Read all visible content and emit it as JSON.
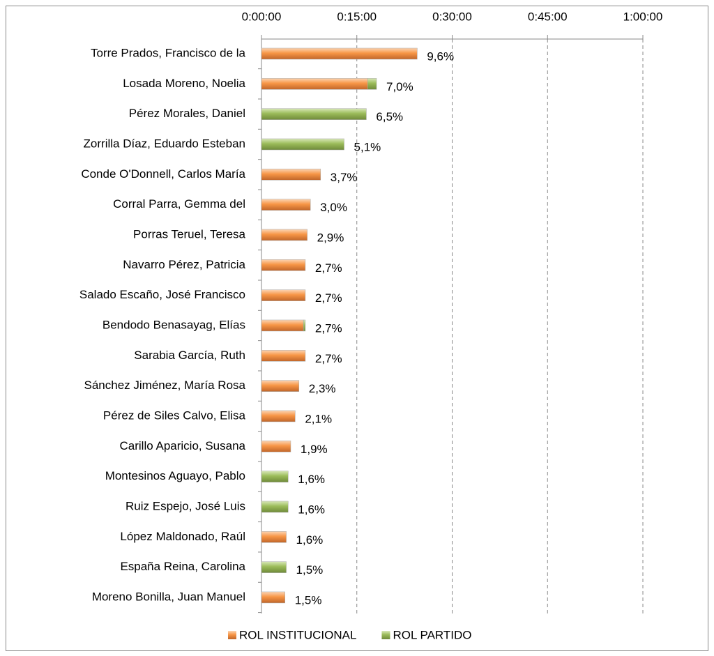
{
  "chart_data": {
    "type": "stacked-bar-horizontal",
    "categories": [
      "Torre Prados, Francisco de la",
      "Losada Moreno, Noelia",
      "Pérez Morales, Daniel",
      "Zorrilla Díaz, Eduardo Esteban",
      "Conde O'Donnell, Carlos María",
      "Corral Parra, Gemma del",
      "Porras Teruel, Teresa",
      "Navarro Pérez, Patricia",
      "Salado Escaño, José Francisco",
      "Bendodo Benasayag, Elías",
      "Sarabia García, Ruth",
      "Sánchez Jiménez, María Rosa",
      "Pérez de Siles Calvo, Elisa",
      "Carillo Aparicio, Susana",
      "Montesinos Aguayo, Pablo",
      "Ruiz Espejo, José Luis",
      "López Maldonado, Raúl",
      "España Reina, Carolina",
      "Moreno Bonilla, Juan Manuel"
    ],
    "series": [
      {
        "name": "ROL INSTITUCIONAL",
        "color": "#f79646",
        "values": [
          24.5,
          16.7,
          null,
          null,
          9.3,
          7.7,
          7.2,
          6.9,
          6.9,
          6.6,
          6.9,
          5.9,
          5.3,
          4.6,
          null,
          null,
          3.9,
          null,
          3.7
        ]
      },
      {
        "name": "ROL PARTIDO",
        "color": "#9bbb59",
        "values": [
          null,
          1.4,
          16.5,
          13.0,
          null,
          null,
          null,
          null,
          null,
          0.3,
          null,
          null,
          null,
          null,
          4.2,
          4.2,
          null,
          3.9,
          null
        ]
      }
    ],
    "share_labels": [
      "9,6%",
      "7,0%",
      "6,5%",
      "5,1%",
      "3,7%",
      "3,0%",
      "2,9%",
      "2,7%",
      "2,7%",
      "2,7%",
      "2,7%",
      "2,3%",
      "2,1%",
      "1,9%",
      "1,6%",
      "1,6%",
      "1,6%",
      "1,5%",
      "1,5%"
    ],
    "xlim": [
      0,
      60
    ],
    "xticks": [
      {
        "value": 0,
        "label": "0:00:00"
      },
      {
        "value": 15,
        "label": "0:15:00"
      },
      {
        "value": 30,
        "label": "0:30:00"
      },
      {
        "value": 45,
        "label": "0:45:00"
      },
      {
        "value": 60,
        "label": "1:00:00"
      }
    ],
    "grid": true,
    "legend": "bottom"
  }
}
